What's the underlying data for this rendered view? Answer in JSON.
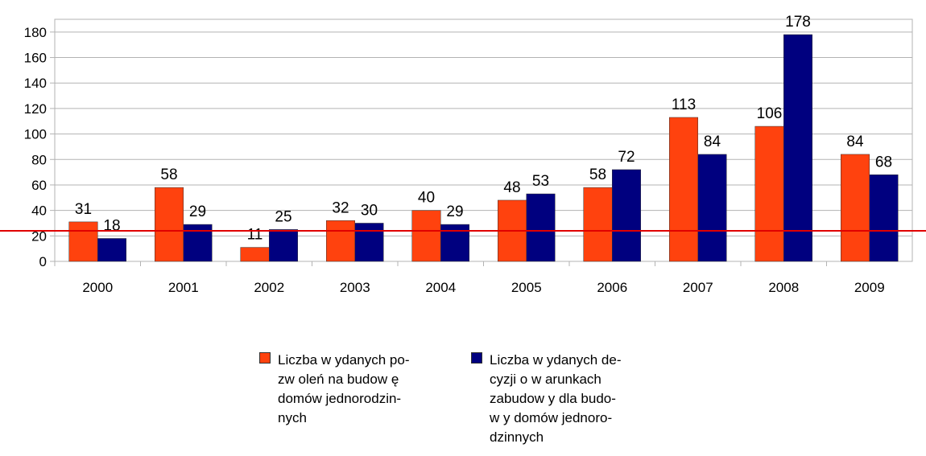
{
  "chart_data": {
    "type": "bar",
    "categories": [
      "2000",
      "2001",
      "2002",
      "2003",
      "2004",
      "2005",
      "2006",
      "2007",
      "2008",
      "2009"
    ],
    "series": [
      {
        "name": "Liczba w ydanych po-\nzw oleń na budow ę\ndomów  jednorodzin-\nnych",
        "color": "#ff420e",
        "values": [
          31,
          58,
          11,
          32,
          40,
          48,
          58,
          113,
          106,
          84
        ]
      },
      {
        "name": "Liczba w ydanych de-\ncyzji o w arunkach\nzabudow y dla budo-\nw y domów  jednoro-\ndzinnych",
        "color": "#00007f",
        "values": [
          18,
          29,
          25,
          30,
          29,
          53,
          72,
          84,
          178,
          68
        ]
      }
    ],
    "ylim": [
      0,
      190
    ],
    "yticks": [
      0,
      20,
      40,
      60,
      80,
      100,
      120,
      140,
      160,
      180
    ],
    "grid": true,
    "reference_line": {
      "value": 24,
      "color": "#e00000"
    }
  }
}
